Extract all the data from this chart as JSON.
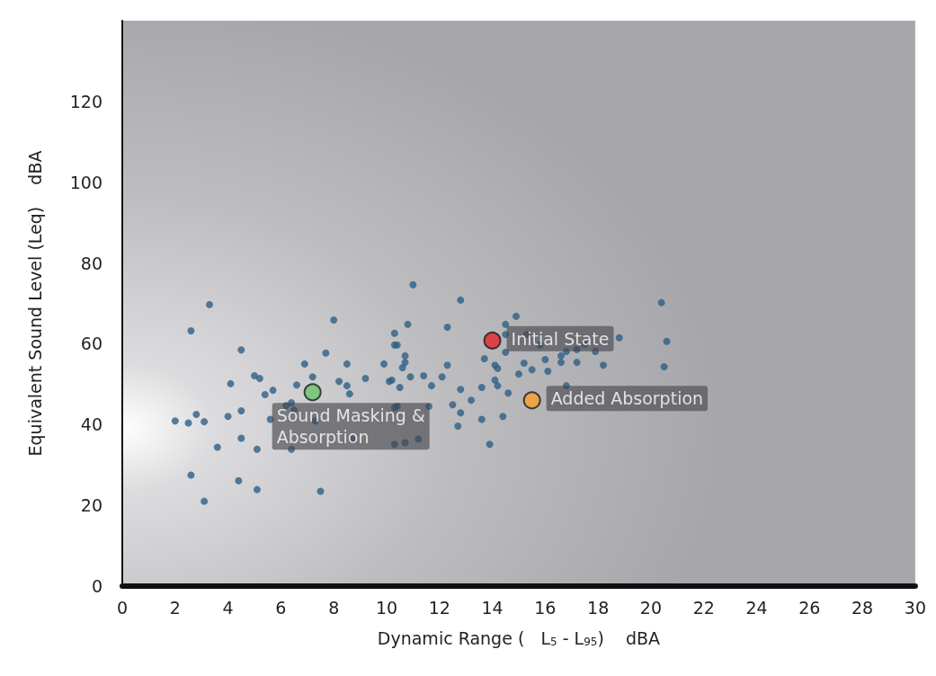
{
  "chart_data": {
    "type": "scatter",
    "xlabel": "Dynamic Range (   L$_{5}$ - L$_{95}$)    dBA",
    "ylabel": "Equivalent Sound Level (Leq)    dBA",
    "xlim": [
      0,
      30
    ],
    "xticks": [
      0,
      2,
      4,
      6,
      8,
      10,
      12,
      14,
      16,
      18,
      20,
      22,
      24,
      26,
      28,
      30
    ],
    "ylim": [
      0,
      140
    ],
    "yticks": [
      0,
      20,
      40,
      60,
      80,
      100,
      120
    ],
    "marker": "circle",
    "series": [
      {
        "color": "#2e5f86",
        "x": [
          3.3,
          2.6,
          8.0,
          4.5,
          7.7,
          6.9,
          8.5,
          9.9,
          10.3,
          10.3,
          5.0,
          5.2,
          4.1,
          7.2,
          5.7,
          5.4,
          9.2,
          8.2,
          8.5,
          8.6,
          10.1,
          6.6,
          6.2,
          6.4,
          6.5,
          4.5,
          2.8,
          4.0,
          2.0,
          2.5,
          3.1,
          5.6,
          7.3,
          4.5,
          3.6,
          5.1,
          6.4,
          8.7,
          10.3,
          2.6,
          4.4,
          5.1,
          7.5,
          3.1,
          10.3,
          11.0,
          12.8,
          12.3,
          10.8,
          14.9,
          14.5,
          14.5,
          15.3,
          15.8,
          18.8,
          17.5,
          17.2,
          17.9,
          16.8,
          16.6,
          20.6,
          20.4,
          20.5,
          18.2,
          17.2,
          16.6,
          16.1,
          16.0,
          15.5,
          15.2,
          15.0,
          14.5,
          13.7,
          14.1,
          14.2,
          14.1,
          14.2,
          14.6,
          16.8,
          13.6,
          13.2,
          12.8,
          12.8,
          12.5,
          12.3,
          12.1,
          11.4,
          11.7,
          10.9,
          10.7,
          10.7,
          10.6,
          10.4,
          10.2,
          10.5,
          10.4,
          11.6,
          13.6,
          14.4,
          13.9,
          10.7,
          11.2,
          12.7
        ],
        "values": [
          69.7,
          63.2,
          65.9,
          58.5,
          57.7,
          55.0,
          55.0,
          55.0,
          62.6,
          59.7,
          52.1,
          51.4,
          50.1,
          51.8,
          48.5,
          47.4,
          51.4,
          50.7,
          49.6,
          47.6,
          50.7,
          49.8,
          44.7,
          45.4,
          43.6,
          43.4,
          42.5,
          42.0,
          40.9,
          40.4,
          40.7,
          41.3,
          40.9,
          36.6,
          34.4,
          33.9,
          33.9,
          36.4,
          35.1,
          27.5,
          26.1,
          23.9,
          23.5,
          21.0,
          44.2,
          74.6,
          70.8,
          64.1,
          64.8,
          66.8,
          64.8,
          62.3,
          62.3,
          59.7,
          61.5,
          59.9,
          58.6,
          58.1,
          58.1,
          57.0,
          60.6,
          70.2,
          54.3,
          54.7,
          55.4,
          55.4,
          53.2,
          56.1,
          53.6,
          55.2,
          52.5,
          57.9,
          56.3,
          54.7,
          53.9,
          51.0,
          49.6,
          47.8,
          49.6,
          49.2,
          46.0,
          48.7,
          42.9,
          44.9,
          54.7,
          51.8,
          52.1,
          49.6,
          51.8,
          57.0,
          55.4,
          54.1,
          59.7,
          51.0,
          49.2,
          44.5,
          44.5,
          41.3,
          42.0,
          35.1,
          35.5,
          36.4,
          39.6
        ]
      },
      {
        "name": "Initial State",
        "color": "#e3242b",
        "x": [
          14.0
        ],
        "values": [
          60.8
        ]
      },
      {
        "name": "Added Absorption",
        "color": "#f5a02a",
        "x": [
          15.5
        ],
        "values": [
          46.0
        ]
      },
      {
        "name": "Sound Masking &\nAbsorption",
        "color": "#6cc46a",
        "x": [
          7.2
        ],
        "values": [
          48.0
        ]
      }
    ]
  }
}
